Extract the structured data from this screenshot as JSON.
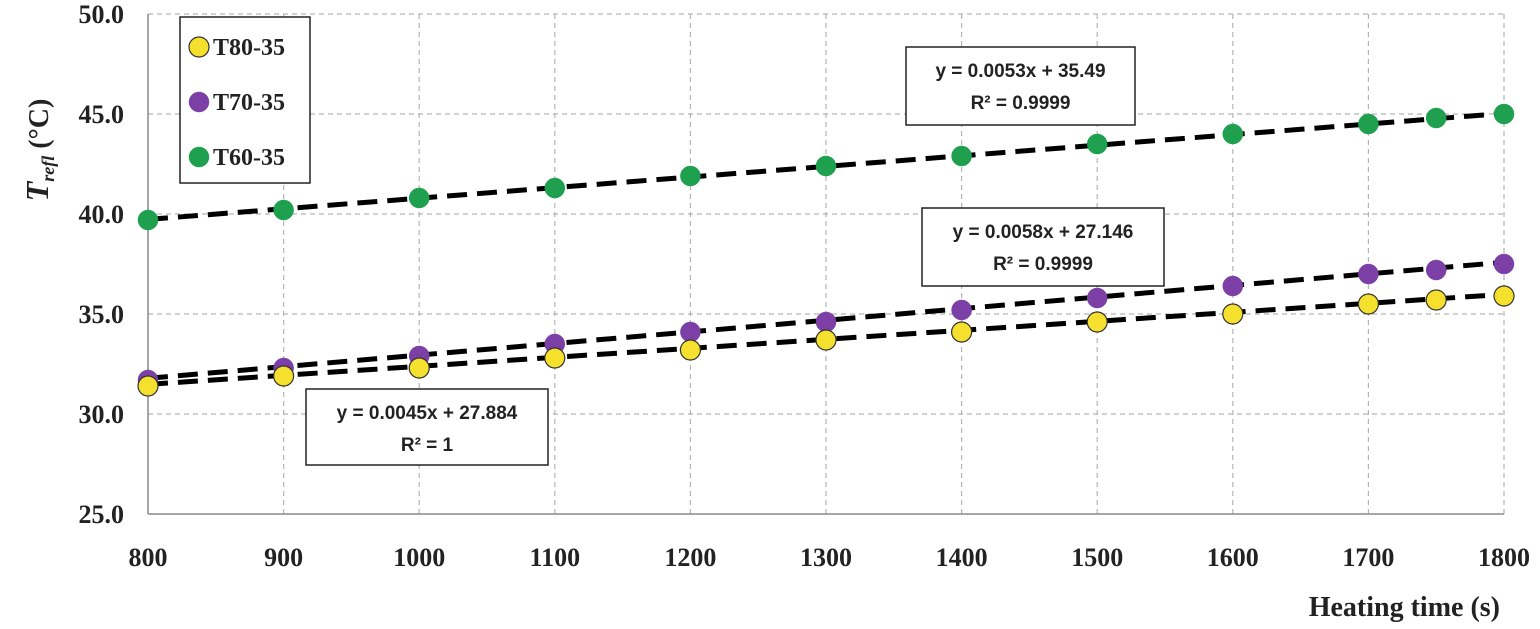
{
  "chart_data": {
    "type": "scatter",
    "xlabel": "Heating time (s)",
    "ylabel_main": "T",
    "ylabel_sub": "refl",
    "ylabel_unit": " (°C)",
    "xlim": [
      800,
      1800
    ],
    "ylim": [
      25.0,
      50.0
    ],
    "x_ticks": [
      "800",
      "900",
      "1000",
      "1100",
      "1200",
      "1300",
      "1400",
      "1500",
      "1600",
      "1700",
      "1800"
    ],
    "y_ticks": [
      "25.0",
      "30.0",
      "35.0",
      "40.0",
      "45.0",
      "50.0"
    ],
    "grid": true,
    "legend_position": "top-left",
    "x": [
      800,
      900,
      1000,
      1100,
      1200,
      1300,
      1400,
      1500,
      1600,
      1700,
      1750,
      1800
    ],
    "series": [
      {
        "name": "T80-35",
        "color": "#f5e12d",
        "values": [
          31.4,
          31.9,
          32.3,
          32.8,
          33.2,
          33.7,
          34.1,
          34.6,
          35.0,
          35.5,
          35.7,
          35.9
        ],
        "trendline": {
          "slope": 0.0045,
          "intercept": 27.884
        }
      },
      {
        "name": "T70-35",
        "color": "#7b3fa6",
        "values": [
          31.7,
          32.3,
          32.9,
          33.5,
          34.1,
          34.6,
          35.2,
          35.8,
          36.4,
          37.0,
          37.2,
          37.5
        ],
        "trendline": {
          "slope": 0.0058,
          "intercept": 27.146
        }
      },
      {
        "name": "T60-35",
        "color": "#1ea04e",
        "values": [
          39.7,
          40.2,
          40.8,
          41.3,
          41.9,
          42.4,
          42.9,
          43.5,
          44.0,
          44.5,
          44.8,
          45.0
        ],
        "trendline": {
          "slope": 0.0053,
          "intercept": 35.49
        }
      }
    ],
    "annotations": [
      {
        "series": "T60-35",
        "equation": "y = 0.0053x  + 35.49",
        "r2": "R² = 0.9999"
      },
      {
        "series": "T70-35",
        "equation": "y = 0.0058x  + 27.146",
        "r2": "R² = 0.9999"
      },
      {
        "series": "T80-35",
        "equation": "y = 0.0045x  + 27.884",
        "r2": "R² = 1"
      }
    ]
  }
}
